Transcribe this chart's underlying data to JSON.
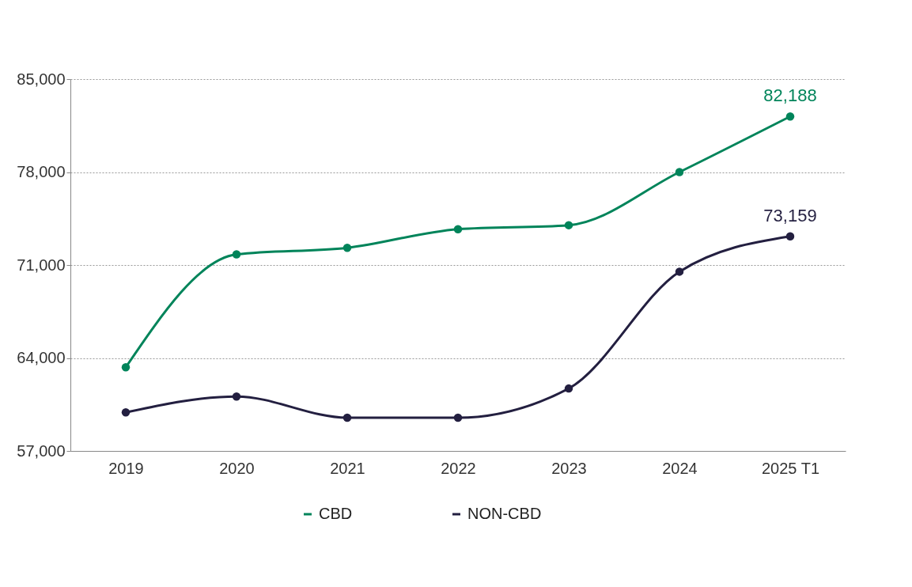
{
  "chart_data": {
    "type": "line",
    "categories": [
      "2019",
      "2020",
      "2021",
      "2022",
      "2023",
      "2024",
      "2025 T1"
    ],
    "series": [
      {
        "name": "CBD",
        "color": "#00845a",
        "values": [
          63300,
          71800,
          72300,
          73700,
          74000,
          78000,
          82188
        ],
        "value_labels": [
          null,
          null,
          null,
          null,
          null,
          null,
          "82,188"
        ]
      },
      {
        "name": "NON-CBD",
        "color": "#231f40",
        "values": [
          59900,
          61100,
          59500,
          59500,
          61700,
          70500,
          73159
        ],
        "value_labels": [
          null,
          null,
          null,
          null,
          null,
          null,
          "73,159"
        ]
      }
    ],
    "ylim": [
      57000,
      85000
    ],
    "yticks": [
      {
        "value": 57000,
        "label": "57,000"
      },
      {
        "value": 64000,
        "label": "64,000"
      },
      {
        "value": 71000,
        "label": "71,000"
      },
      {
        "value": 78000,
        "label": "78,000"
      },
      {
        "value": 85000,
        "label": "85,000"
      }
    ],
    "grid": "y",
    "legend": "bottom",
    "marker": "circle",
    "line_style": "solid"
  }
}
